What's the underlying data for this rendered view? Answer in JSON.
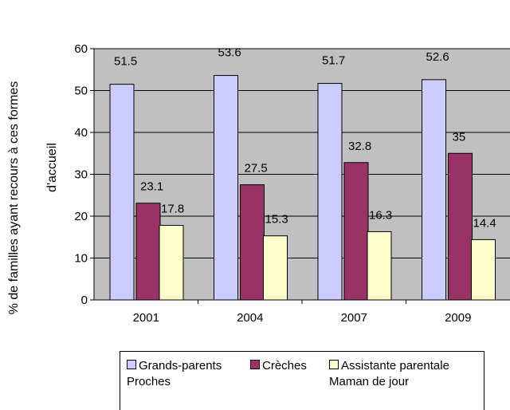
{
  "chart_data": {
    "type": "bar",
    "ylabel_line1": "% de familles ayant recours à ces formes",
    "ylabel_line2": "d'accueil",
    "categories": [
      "2001",
      "2004",
      "2007",
      "2009"
    ],
    "series": [
      {
        "name": "Grands-parents\nProches",
        "color": "#ccccff",
        "values": [
          51.5,
          53.6,
          51.7,
          52.6
        ]
      },
      {
        "name": "Crèches",
        "color": "#993366",
        "values": [
          23.1,
          27.5,
          32.8,
          35
        ]
      },
      {
        "name": "Assistante parentale\nMaman de jour",
        "color": "#ffffcc",
        "values": [
          17.8,
          15.3,
          16.3,
          14.4
        ]
      }
    ],
    "value_labels": [
      [
        "51.5",
        "53.6",
        "51.7",
        "52.6"
      ],
      [
        "23.1",
        "27.5",
        "32.8",
        "35"
      ],
      [
        "17.8",
        "15.3",
        "16.3",
        "14.4"
      ]
    ],
    "yticks": [
      0,
      10,
      20,
      30,
      40,
      50,
      60
    ],
    "ylim": [
      0,
      60
    ],
    "grid": true,
    "plot_background": "#c0c0c0",
    "legend_position": "bottom"
  }
}
